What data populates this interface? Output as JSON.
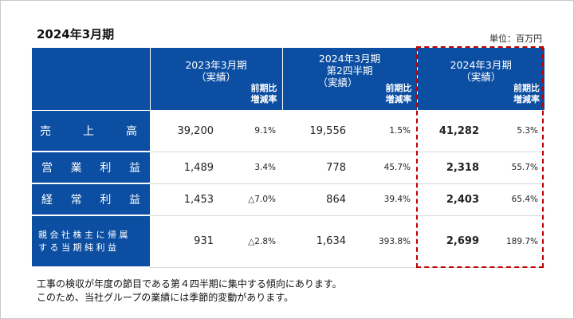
{
  "title": "2024年3月期",
  "unit": "単位：百万円",
  "columns": [
    {
      "title_line1": "2023年3月期",
      "title_line2": "（実績）",
      "sub_line1": "前期比",
      "sub_line2": "増減率"
    },
    {
      "title_line1": "2024年3月期",
      "title_line2": "第2四半期",
      "title_line3": "（実績）",
      "sub_line1": "前期比",
      "sub_line2": "増減率"
    },
    {
      "title_line1": "2024年3月期",
      "title_line2": "（実績）",
      "sub_line1": "前期比",
      "sub_line2": "増減率"
    }
  ],
  "rows": [
    {
      "label_chars": [
        "売",
        "上",
        "高"
      ],
      "v1": "39,200",
      "r1": "9.1%",
      "v2": "19,556",
      "r2": "1.5%",
      "v3": "41,282",
      "r3": "5.3%"
    },
    {
      "label_chars": [
        "営",
        "業",
        "利",
        "益"
      ],
      "v1": "1,489",
      "r1": "3.4%",
      "v2": "778",
      "r2": "45.7%",
      "v3": "2,318",
      "r3": "55.7%"
    },
    {
      "label_chars": [
        "経",
        "常",
        "利",
        "益"
      ],
      "v1": "1,453",
      "r1": "△7.0%",
      "v2": "864",
      "r2": "39.4%",
      "v3": "2,403",
      "r3": "65.4%"
    },
    {
      "label_line1": "親会社株主に帰属",
      "label_line2": "する当期純利益",
      "v1": "931",
      "r1": "△2.8%",
      "v2": "1,634",
      "r2": "393.8%",
      "v3": "2,699",
      "r3": "189.7%"
    }
  ],
  "note_line1": "工事の検収が年度の節目である第４四半期に集中する傾向にあります。",
  "note_line2": "このため、当社グループの業績には季節的変動があります。",
  "colors": {
    "header_blue": "#0b4ea2",
    "highlight_red": "#c00000"
  }
}
